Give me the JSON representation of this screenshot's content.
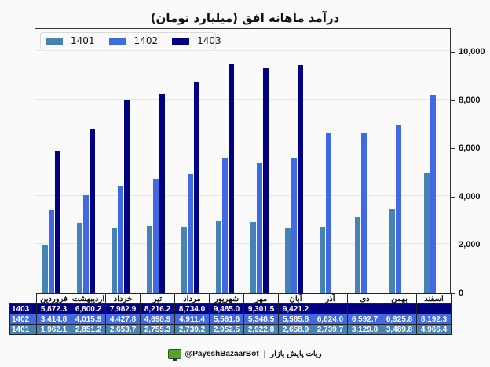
{
  "title": "درآمد ماهانه افق (میلیارد تومان)",
  "colors": {
    "1401": "#4682b4",
    "1402": "#4169e1",
    "1403": "#000080"
  },
  "legend": [
    {
      "label": "1401",
      "color": "#4682b4"
    },
    {
      "label": "1402",
      "color": "#4169e1"
    },
    {
      "label": "1403",
      "color": "#000080"
    }
  ],
  "y_ticks": [
    "0",
    "2,000",
    "4,000",
    "6,000",
    "8,000",
    "10,000"
  ],
  "table": {
    "months": [
      "فروردین",
      "اردیبهشت",
      "خرداد",
      "تیر",
      "مرداد",
      "شهریور",
      "مهر",
      "آبان",
      "آذر",
      "دی",
      "بهمن",
      "اسفند"
    ],
    "rows": [
      {
        "label": "1403",
        "values": [
          "5,872.3",
          "6,800.2",
          "7,982.9",
          "8,216.2",
          "8,734.0",
          "9,485.0",
          "9,301.5",
          "9,421.2",
          "",
          "",
          "",
          ""
        ]
      },
      {
        "label": "1402",
        "values": [
          "3,414.8",
          "4,015.9",
          "4,427.8",
          "4,698.9",
          "4,911.4",
          "5,561.6",
          "5,348.5",
          "5,585.8",
          "6,624.0",
          "6,592.7",
          "6,925.8",
          "8,192.3"
        ]
      },
      {
        "label": "1401",
        "values": [
          "1,962.1",
          "2,851.2",
          "2,653.7",
          "2,755.3",
          "2,739.2",
          "2,952.5",
          "2,922.8",
          "2,658.9",
          "2,739.7",
          "3,129.0",
          "3,489.8",
          "4,966.4"
        ]
      }
    ]
  },
  "footer": {
    "handle": "@PayeshBazaarBot",
    "separator": "|",
    "name": "ربات پایش بازار"
  },
  "chart_data": {
    "type": "bar",
    "title": "درآمد ماهانه افق (میلیارد تومان)",
    "xlabel": "",
    "ylabel": "",
    "ylim": [
      0,
      11000
    ],
    "y_axis_position": "right",
    "grid": true,
    "legend_position": "upper left",
    "categories": [
      "فروردین",
      "اردیبهشت",
      "خرداد",
      "تیر",
      "مرداد",
      "شهریور",
      "مهر",
      "آبان",
      "آذر",
      "دی",
      "بهمن",
      "اسفند"
    ],
    "series": [
      {
        "name": "1401",
        "color": "#4682b4",
        "values": [
          1962.1,
          2851.2,
          2653.7,
          2755.3,
          2739.2,
          2952.5,
          2922.8,
          2658.9,
          2739.7,
          3129.0,
          3489.8,
          4966.4
        ]
      },
      {
        "name": "1402",
        "color": "#4169e1",
        "values": [
          3414.8,
          4015.9,
          4427.8,
          4698.9,
          4911.4,
          5561.6,
          5348.5,
          5585.8,
          6624.0,
          6592.7,
          6925.8,
          8192.3
        ]
      },
      {
        "name": "1403",
        "color": "#000080",
        "values": [
          5872.3,
          6800.2,
          7982.9,
          8216.2,
          8734.0,
          9485.0,
          9301.5,
          9421.2,
          null,
          null,
          null,
          null
        ]
      }
    ]
  }
}
